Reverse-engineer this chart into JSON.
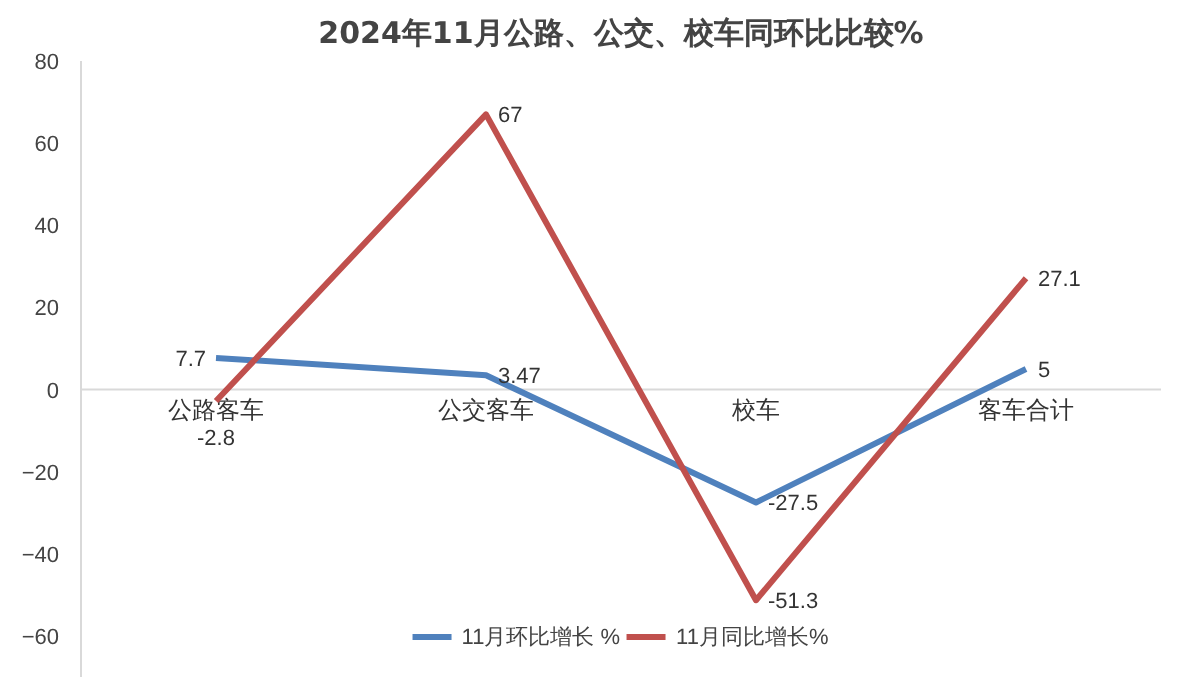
{
  "chart_data": {
    "type": "line",
    "title": "2024年11月公路、公交、校车同环比比较%",
    "categories": [
      "公路客车",
      "公交客车",
      "校车",
      "客车合计"
    ],
    "series": [
      {
        "name": "11月环比增长 %",
        "color": "#4f81bd",
        "values": [
          7.7,
          3.47,
          -27.5,
          5
        ]
      },
      {
        "name": "11月同比增长%",
        "color": "#c0504d",
        "values": [
          -2.8,
          67,
          -51.3,
          27.1
        ]
      }
    ],
    "ylim": [
      -70,
      80
    ],
    "yticks": [
      -60,
      -40,
      -20,
      0,
      20,
      40,
      60,
      80
    ],
    "grid": false,
    "legend": "bottom",
    "data_labels": true,
    "marker": "none",
    "line_style": "solid"
  }
}
